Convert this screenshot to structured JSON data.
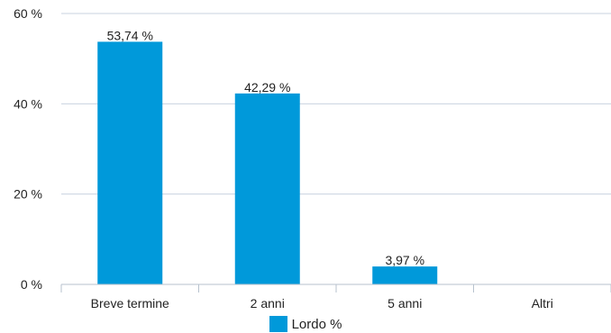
{
  "chart_data": {
    "type": "bar",
    "categories": [
      "Breve termine",
      "2 anni",
      "5 anni",
      "Altri"
    ],
    "series": [
      {
        "name": "Lordo %",
        "values": [
          53.74,
          42.29,
          3.97,
          0
        ],
        "color": "#0099da"
      }
    ],
    "data_labels": [
      "53,74 %",
      "42,29 %",
      "3,97 %",
      ""
    ],
    "yticks": [
      0,
      20,
      40,
      60
    ],
    "ytick_labels": [
      "0 %",
      "20 %",
      "40 %",
      "60 %"
    ],
    "ylim": [
      0,
      60
    ],
    "grid": true,
    "legend_position": "bottom-center"
  }
}
